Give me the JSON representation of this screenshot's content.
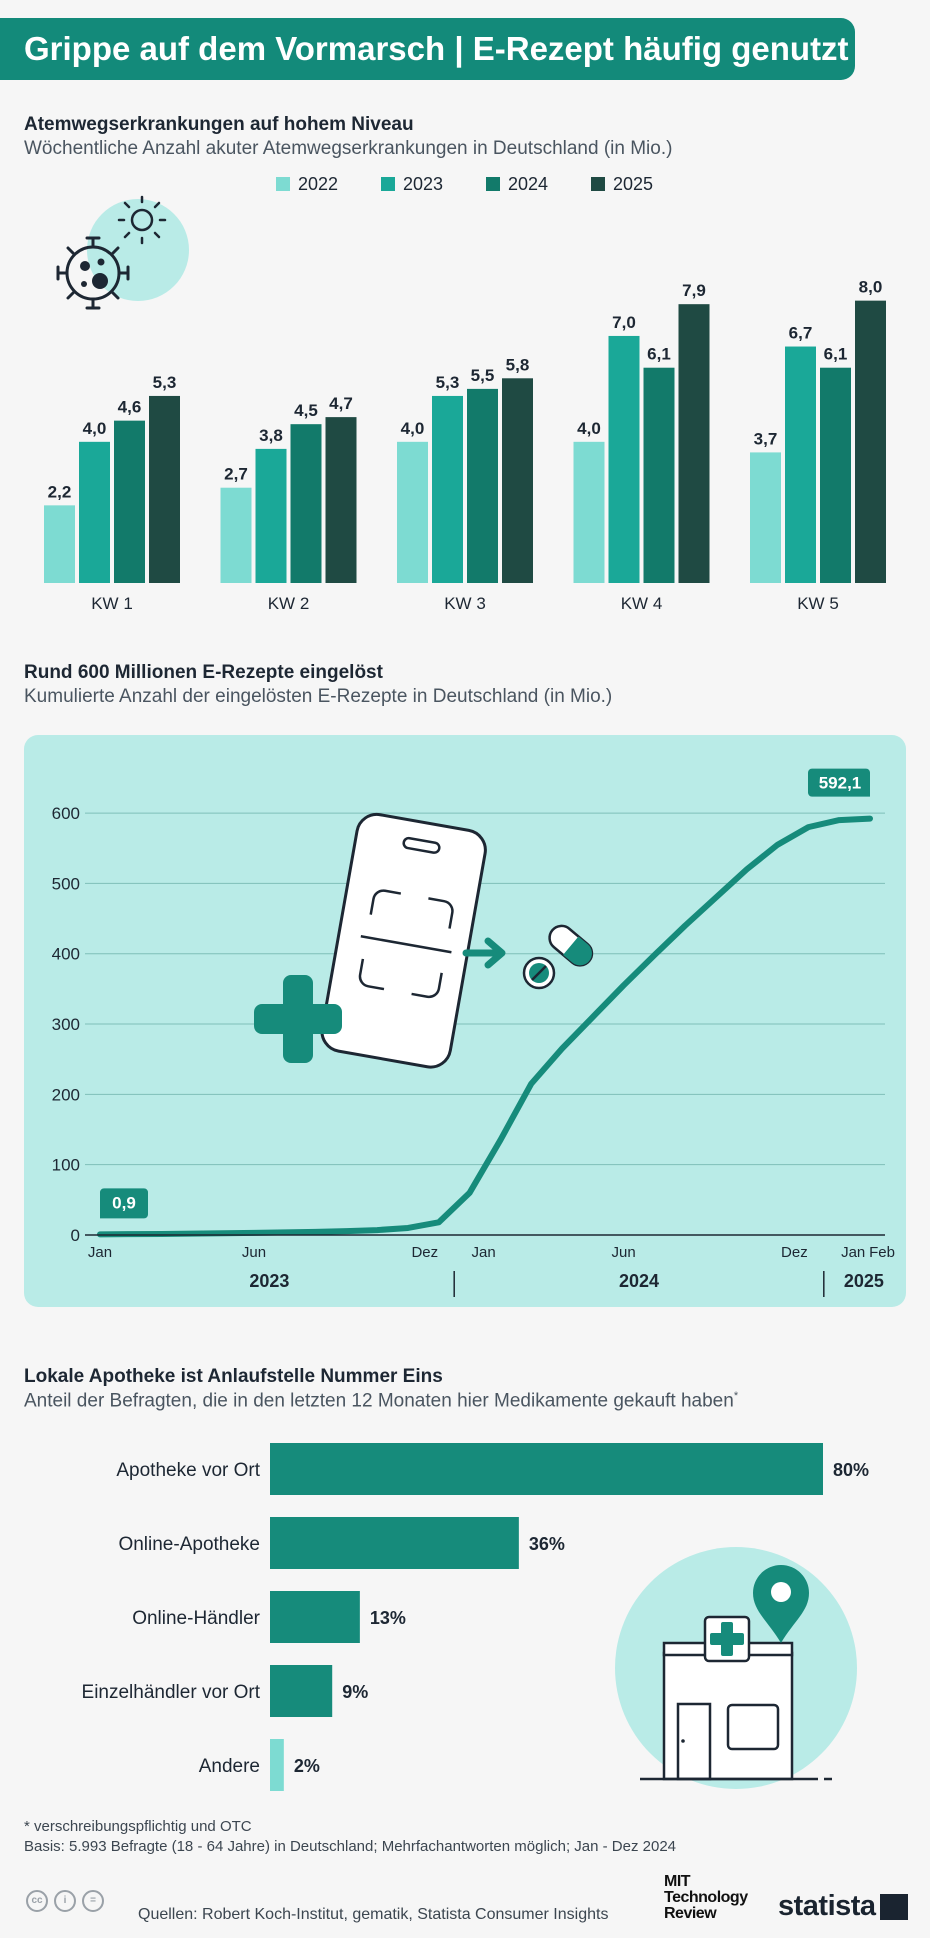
{
  "header": {
    "title": "Grippe auf dem Vormarsch | E-Rezept häufig genutzt"
  },
  "section1": {
    "title": "Atemwegserkrankungen auf hohem Niveau",
    "subtitle": "Wöchentliche Anzahl akuter Atemwegserkrankungen in Deutschland (in Mio.)"
  },
  "section2": {
    "title": "Rund 600 Millionen E-Rezepte eingelöst",
    "subtitle": "Kumulierte Anzahl der eingelösten E-Rezepte in Deutschland (in Mio.)"
  },
  "section3": {
    "title": "Lokale Apotheke ist Anlaufstelle Nummer Eins",
    "subtitle": "Anteil der Befragten, die in den letzten 12 Monaten hier Medikamente gekauft haben",
    "subtitle_mark": "*"
  },
  "footnotes": {
    "line1": "* verschreibungspflichtig und OTC",
    "line2": "Basis: 5.993 Befragte (18 - 64 Jahre) in Deutschland; Mehrfachantworten möglich; Jan - Dez 2024"
  },
  "footer": {
    "sources": "Quellen: Robert Koch-Institut, gematik, Statista Consumer Insights",
    "mit_logo": [
      "MIT",
      "Technology",
      "Review"
    ],
    "statista_logo": "statista"
  },
  "colors": {
    "s2022": "#7ddbd2",
    "s2023": "#1aa898",
    "s2024": "#127a6a",
    "s2025": "#1f4a43",
    "teal": "#168b7b",
    "panel": "#b9ebe7"
  },
  "chart_data": [
    {
      "type": "bar",
      "title": "Atemwegserkrankungen auf hohem Niveau",
      "categories": [
        "KW 1",
        "KW 2",
        "KW 3",
        "KW 4",
        "KW 5"
      ],
      "series": [
        {
          "name": "2022",
          "values": [
            2.2,
            2.7,
            4.0,
            4.0,
            3.7
          ],
          "labels": [
            "2,2",
            "2,7",
            "4,0",
            "4,0",
            "3,7"
          ]
        },
        {
          "name": "2023",
          "values": [
            4.0,
            3.8,
            5.3,
            7.0,
            6.7
          ],
          "labels": [
            "4,0",
            "3,8",
            "5,3",
            "7,0",
            "6,7"
          ]
        },
        {
          "name": "2024",
          "values": [
            4.6,
            4.5,
            5.5,
            6.1,
            6.1
          ],
          "labels": [
            "4,6",
            "4,5",
            "5,5",
            "6,1",
            "6,1"
          ]
        },
        {
          "name": "2025",
          "values": [
            5.3,
            4.7,
            5.8,
            7.9,
            8.0
          ],
          "labels": [
            "5,3",
            "4,7",
            "5,8",
            "7,9",
            "8,0"
          ]
        }
      ],
      "ylim": [
        0,
        8.5
      ]
    },
    {
      "type": "line",
      "title": "Rund 600 Millionen E-Rezepte eingelöst",
      "x": [
        0,
        1,
        2,
        3,
        4,
        5,
        6,
        7,
        8,
        9,
        10,
        11,
        12,
        13,
        14,
        15,
        16,
        17,
        18,
        19,
        20,
        21,
        22,
        23,
        24,
        25
      ],
      "values": [
        0.9,
        1.2,
        1.5,
        1.9,
        2.4,
        3.0,
        3.7,
        4.5,
        5.5,
        7,
        10,
        18,
        60,
        135,
        215,
        265,
        310,
        355,
        398,
        440,
        480,
        520,
        555,
        580,
        590,
        592.1
      ],
      "yticks": [
        0,
        100,
        200,
        300,
        400,
        500,
        600
      ],
      "ylim": [
        0,
        620
      ],
      "xticks": [
        {
          "x": 0,
          "label": "Jan"
        },
        {
          "x": 5,
          "label": "Jun"
        },
        {
          "x": 11,
          "label": "Dez"
        },
        {
          "x": 12,
          "label": "Jan"
        },
        {
          "x": 17,
          "label": "Jun"
        },
        {
          "x": 23,
          "label": "Dez"
        },
        {
          "x": 24,
          "label": "Jan"
        },
        {
          "x": 25,
          "label": "Feb"
        }
      ],
      "year_labels": [
        "2023",
        "2024",
        "2025"
      ],
      "callouts": {
        "start": "0,9",
        "end": "592,1"
      }
    },
    {
      "type": "bar",
      "orientation": "horizontal",
      "title": "Lokale Apotheke ist Anlaufstelle Nummer Eins",
      "categories": [
        "Apotheke vor Ort",
        "Online-Apotheke",
        "Online-Händler",
        "Einzelhändler vor Ort",
        "Andere"
      ],
      "values": [
        80,
        36,
        13,
        9,
        2
      ],
      "labels": [
        "80%",
        "36%",
        "13%",
        "9%",
        "2%"
      ],
      "xlim": [
        0,
        80
      ]
    }
  ]
}
